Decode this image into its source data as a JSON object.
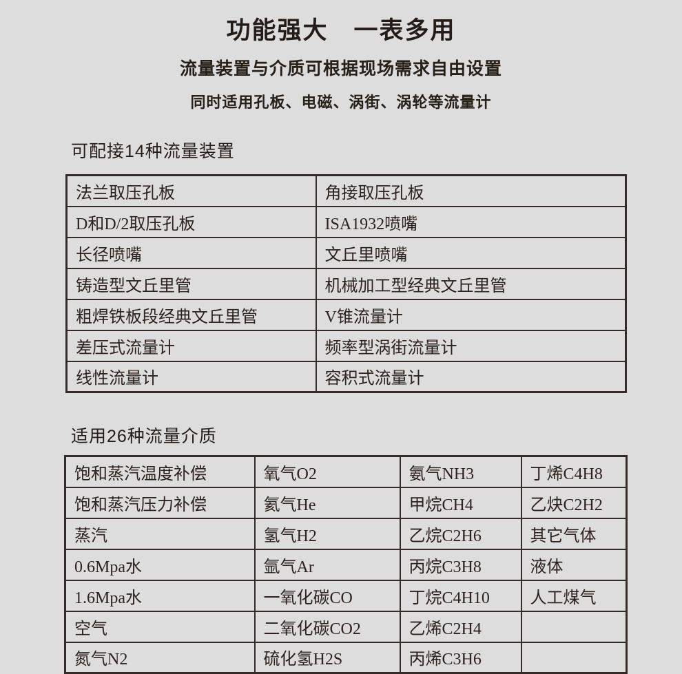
{
  "page": {
    "title": "功能强大　一表多用",
    "subtitle1": "流量装置与介质可根据现场需求自由设置",
    "subtitle2": "同时适用孔板、电磁、涡街、涡轮等流量计"
  },
  "devices_section": {
    "title": "可配接14种流量装置",
    "rows": [
      [
        "法兰取压孔板",
        "角接取压孔板"
      ],
      [
        "D和D/2取压孔板",
        "ISA1932喷嘴"
      ],
      [
        "长径喷嘴",
        "文丘里喷嘴"
      ],
      [
        "铸造型文丘里管",
        "机械加工型经典文丘里管"
      ],
      [
        "粗焊铁板段经典文丘里管",
        "V锥流量计"
      ],
      [
        "差压式流量计",
        "频率型涡街流量计"
      ],
      [
        "线性流量计",
        "容积式流量计"
      ]
    ]
  },
  "media_section": {
    "title": "适用26种流量介质",
    "rows": [
      [
        "饱和蒸汽温度补偿",
        "氧气O2",
        "氨气NH3",
        "丁烯C4H8"
      ],
      [
        "饱和蒸汽压力补偿",
        "氦气He",
        "甲烷CH4",
        "乙炔C2H2"
      ],
      [
        "蒸汽",
        "氢气H2",
        "乙烷C2H6",
        "其它气体"
      ],
      [
        "0.6Mpa水",
        "氩气Ar",
        "丙烷C3H8",
        "液体"
      ],
      [
        "1.6Mpa水",
        "一氧化碳CO",
        "丁烷C4H10",
        "人工煤气"
      ],
      [
        "空气",
        "二氧化碳CO2",
        "乙烯C2H4",
        ""
      ],
      [
        "氮气N2",
        "硫化氢H2S",
        "丙烯C3H6",
        ""
      ]
    ]
  },
  "colors": {
    "background": "#dedddd",
    "text": "#2c2320",
    "border": "#332b28"
  }
}
